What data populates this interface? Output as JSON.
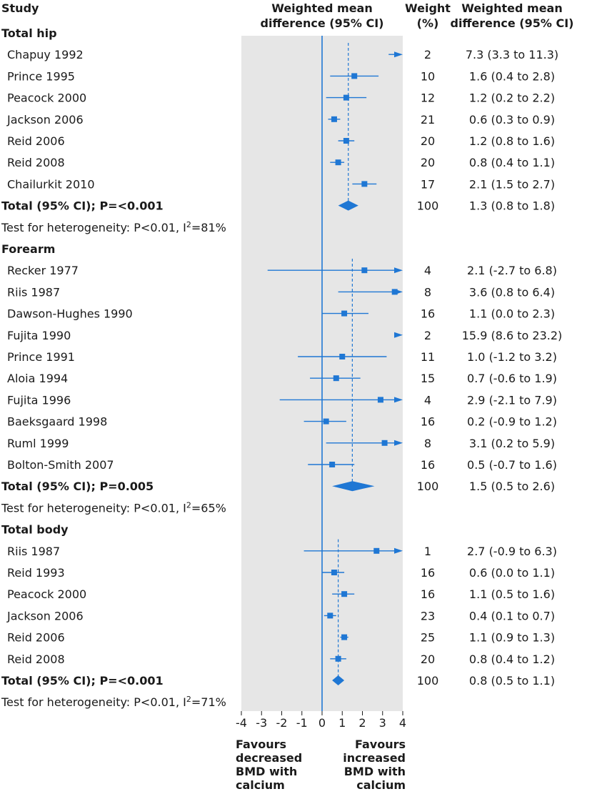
{
  "headers": {
    "study": "Study",
    "plot_line1": "Weighted mean",
    "plot_line2": "difference (95% CI)",
    "weight_line1": "Weight",
    "weight_line2": "(%)",
    "wmd_line1": "Weighted mean",
    "wmd_line2": "difference (95% CI)"
  },
  "colors": {
    "accent": "#1f77d4",
    "panel": "#e6e6e6"
  },
  "chart_data": {
    "type": "forest",
    "xlim": [
      -4,
      4
    ],
    "ticks": [
      "-4",
      "-3",
      "-2",
      "-1",
      "0",
      "1",
      "2",
      "3",
      "4"
    ],
    "xlabel_left": [
      "Favours",
      "decreased",
      "BMD with",
      "calcium"
    ],
    "xlabel_right": [
      "Favours",
      "increased",
      "BMD with",
      "calcium"
    ],
    "rows": [
      {
        "kind": "header",
        "label": "Total hip"
      },
      {
        "kind": "study",
        "label": "Chapuy 1992",
        "weight": "2",
        "ci_text": "7.3 (3.3 to 11.3)",
        "mean": 7.3,
        "lo": 3.3,
        "hi": 11.3
      },
      {
        "kind": "study",
        "label": "Prince 1995",
        "weight": "10",
        "ci_text": "1.6 (0.4 to 2.8)",
        "mean": 1.6,
        "lo": 0.4,
        "hi": 2.8
      },
      {
        "kind": "study",
        "label": "Peacock 2000",
        "weight": "12",
        "ci_text": "1.2 (0.2 to 2.2)",
        "mean": 1.2,
        "lo": 0.2,
        "hi": 2.2
      },
      {
        "kind": "study",
        "label": "Jackson 2006",
        "weight": "21",
        "ci_text": "0.6 (0.3 to 0.9)",
        "mean": 0.6,
        "lo": 0.3,
        "hi": 0.9
      },
      {
        "kind": "study",
        "label": "Reid 2006",
        "weight": "20",
        "ci_text": "1.2 (0.8 to 1.6)",
        "mean": 1.2,
        "lo": 0.8,
        "hi": 1.6
      },
      {
        "kind": "study",
        "label": "Reid 2008",
        "weight": "20",
        "ci_text": "0.8 (0.4 to 1.1)",
        "mean": 0.8,
        "lo": 0.4,
        "hi": 1.1
      },
      {
        "kind": "study",
        "label": "Chailurkit 2010",
        "weight": "17",
        "ci_text": "2.1 (1.5 to 2.7)",
        "mean": 2.1,
        "lo": 1.5,
        "hi": 2.7
      },
      {
        "kind": "total",
        "label": "Total (95% CI); P=<0.001",
        "weight": "100",
        "ci_text": "1.3 (0.8 to 1.8)",
        "mean": 1.3,
        "lo": 0.8,
        "hi": 1.8
      },
      {
        "kind": "het",
        "label": "Test for heterogeneity: P<0.01, I",
        "sup": "2",
        "tail": "=81%"
      },
      {
        "kind": "header",
        "label": "Forearm"
      },
      {
        "kind": "study",
        "label": "Recker 1977",
        "weight": "4",
        "ci_text": "2.1 (-2.7 to 6.8)",
        "mean": 2.1,
        "lo": -2.7,
        "hi": 6.8
      },
      {
        "kind": "study",
        "label": "Riis 1987",
        "weight": "8",
        "ci_text": "3.6 (0.8 to 6.4)",
        "mean": 3.6,
        "lo": 0.8,
        "hi": 6.4
      },
      {
        "kind": "study",
        "label": "Dawson-Hughes 1990",
        "weight": "16",
        "ci_text": "1.1 (0.0 to 2.3)",
        "mean": 1.1,
        "lo": 0.0,
        "hi": 2.3
      },
      {
        "kind": "study",
        "label": "Fujita 1990",
        "weight": "2",
        "ci_text": "15.9 (8.6 to 23.2)",
        "mean": 15.9,
        "lo": 8.6,
        "hi": 23.2
      },
      {
        "kind": "study",
        "label": "Prince 1991",
        "weight": "11",
        "ci_text": "1.0 (-1.2 to 3.2)",
        "mean": 1.0,
        "lo": -1.2,
        "hi": 3.2
      },
      {
        "kind": "study",
        "label": "Aloia 1994",
        "weight": "15",
        "ci_text": "0.7 (-0.6 to 1.9)",
        "mean": 0.7,
        "lo": -0.6,
        "hi": 1.9
      },
      {
        "kind": "study",
        "label": "Fujita 1996",
        "weight": "4",
        "ci_text": "2.9 (-2.1 to 7.9)",
        "mean": 2.9,
        "lo": -2.1,
        "hi": 7.9
      },
      {
        "kind": "study",
        "label": "Baeksgaard 1998",
        "weight": "16",
        "ci_text": "0.2 (-0.9 to 1.2)",
        "mean": 0.2,
        "lo": -0.9,
        "hi": 1.2
      },
      {
        "kind": "study",
        "label": "Ruml 1999",
        "weight": "8",
        "ci_text": "3.1 (0.2 to 5.9)",
        "mean": 3.1,
        "lo": 0.2,
        "hi": 5.9
      },
      {
        "kind": "study",
        "label": "Bolton-Smith 2007",
        "weight": "16",
        "ci_text": "0.5 (-0.7 to 1.6)",
        "mean": 0.5,
        "lo": -0.7,
        "hi": 1.6
      },
      {
        "kind": "total",
        "label": "Total (95% CI); P=0.005",
        "weight": "100",
        "ci_text": "1.5 (0.5 to 2.6)",
        "mean": 1.5,
        "lo": 0.5,
        "hi": 2.6
      },
      {
        "kind": "het",
        "label": "Test for heterogeneity: P<0.01, I",
        "sup": "2",
        "tail": "=65%"
      },
      {
        "kind": "header",
        "label": "Total body"
      },
      {
        "kind": "study",
        "label": "Riis 1987",
        "weight": "1",
        "ci_text": "2.7 (-0.9 to 6.3)",
        "mean": 2.7,
        "lo": -0.9,
        "hi": 6.3
      },
      {
        "kind": "study",
        "label": "Reid 1993",
        "weight": "16",
        "ci_text": "0.6 (0.0 to 1.1)",
        "mean": 0.6,
        "lo": 0.0,
        "hi": 1.1
      },
      {
        "kind": "study",
        "label": "Peacock 2000",
        "weight": "16",
        "ci_text": "1.1 (0.5 to 1.6)",
        "mean": 1.1,
        "lo": 0.5,
        "hi": 1.6
      },
      {
        "kind": "study",
        "label": "Jackson 2006",
        "weight": "23",
        "ci_text": "0.4 (0.1 to 0.7)",
        "mean": 0.4,
        "lo": 0.1,
        "hi": 0.7
      },
      {
        "kind": "study",
        "label": "Reid 2006",
        "weight": "25",
        "ci_text": "1.1 (0.9 to 1.3)",
        "mean": 1.1,
        "lo": 0.9,
        "hi": 1.3
      },
      {
        "kind": "study",
        "label": "Reid 2008",
        "weight": "20",
        "ci_text": "0.8 (0.4 to 1.2)",
        "mean": 0.8,
        "lo": 0.4,
        "hi": 1.2
      },
      {
        "kind": "total",
        "label": "Total (95% CI); P=<0.001",
        "weight": "100",
        "ci_text": "0.8 (0.5 to 1.1)",
        "mean": 0.8,
        "lo": 0.5,
        "hi": 1.1
      },
      {
        "kind": "het",
        "label": "Test for heterogeneity: P<0.01, I",
        "sup": "2",
        "tail": "=71%"
      }
    ]
  }
}
